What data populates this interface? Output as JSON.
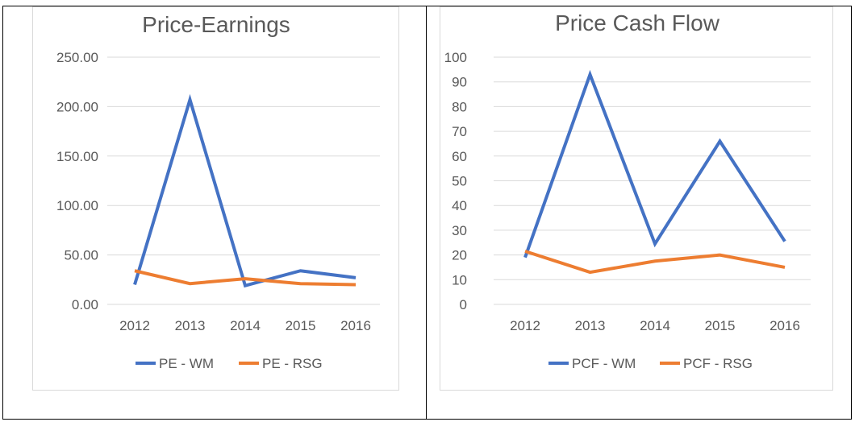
{
  "chart_data": [
    {
      "type": "line",
      "title": "Price-Earnings",
      "categories": [
        "2012",
        "2013",
        "2014",
        "2015",
        "2016"
      ],
      "ylim": [
        0,
        250
      ],
      "yticks": [
        "0.00",
        "50.00",
        "100.00",
        "150.00",
        "200.00",
        "250.00"
      ],
      "ytick_values": [
        0,
        50,
        100,
        150,
        200,
        250
      ],
      "grid": true,
      "legend": "bottom",
      "series": [
        {
          "name": "PE - WM",
          "color": "#4472c4",
          "values": [
            20,
            207,
            19,
            34,
            27
          ]
        },
        {
          "name": "PE - RSG",
          "color": "#ed7d31",
          "values": [
            34,
            21,
            26,
            21,
            20
          ]
        }
      ]
    },
    {
      "type": "line",
      "title": "Price Cash Flow",
      "categories": [
        "2012",
        "2013",
        "2014",
        "2015",
        "2016"
      ],
      "ylim": [
        0,
        100
      ],
      "yticks": [
        "0",
        "10",
        "20",
        "30",
        "40",
        "50",
        "60",
        "70",
        "80",
        "90",
        "100"
      ],
      "ytick_values": [
        0,
        10,
        20,
        30,
        40,
        50,
        60,
        70,
        80,
        90,
        100
      ],
      "grid": true,
      "legend": "bottom",
      "series": [
        {
          "name": "PCF - WM",
          "color": "#4472c4",
          "values": [
            19,
            93,
            24.5,
            66,
            25.5
          ]
        },
        {
          "name": "PCF - RSG",
          "color": "#ed7d31",
          "values": [
            21.5,
            13,
            17.5,
            20,
            15
          ]
        }
      ]
    }
  ]
}
